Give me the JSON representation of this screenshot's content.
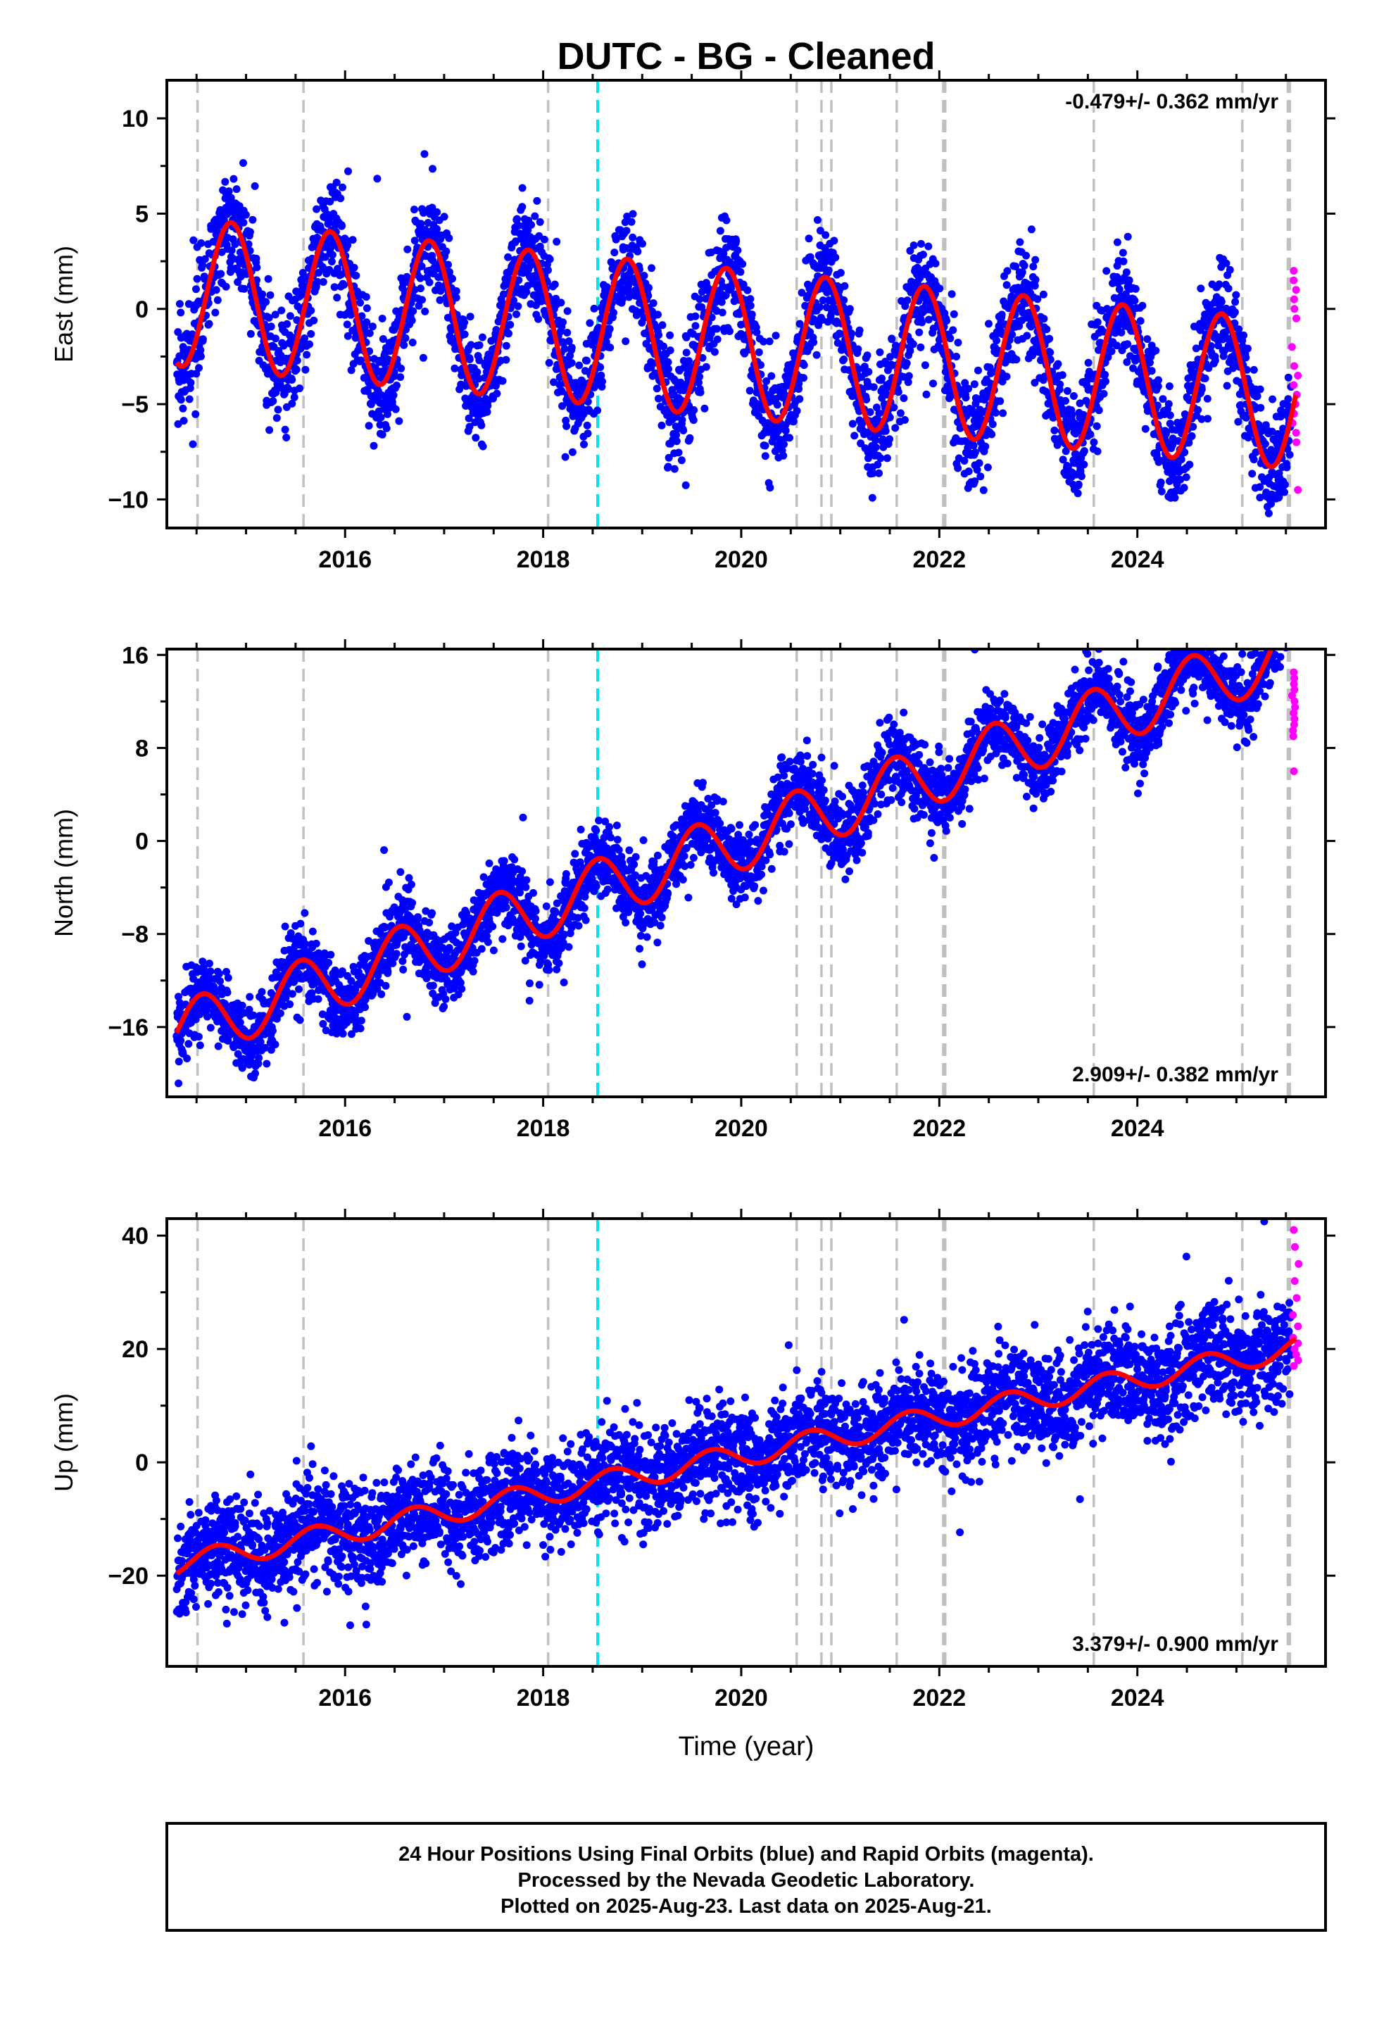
{
  "title": "DUTC  - BG - Cleaned",
  "xlabel": "Time (year)",
  "footer": [
    "24 Hour Positions Using Final Orbits (blue) and Rapid Orbits (magenta).",
    "Processed by the Nevada Geodetic Laboratory.",
    "Plotted on 2025-Aug-23. Last data on 2025-Aug-21."
  ],
  "colors": {
    "final": "#0000ff",
    "rapid": "#ff00ff",
    "model": "#ff0000",
    "event": "#c0c0c0",
    "antenna": "#00e5e5"
  },
  "chart_data": [
    {
      "type": "scatter",
      "ylabel": "East (mm)",
      "rate_label": "-0.479+/- 0.362 mm/yr",
      "xlim": [
        2014.2,
        2025.9
      ],
      "ylim": [
        -11.5,
        12.0
      ],
      "xticks": [
        2016,
        2018,
        2020,
        2022,
        2024
      ],
      "yticks": [
        -10,
        -5,
        0,
        5,
        10
      ],
      "event_lines": [
        2014.51,
        2015.58,
        2018.05,
        2020.56,
        2020.81,
        2020.91,
        2021.57,
        2022.04,
        2022.06,
        2023.56,
        2025.06,
        2025.52,
        2025.54
      ],
      "antenna_lines": [
        2018.55
      ],
      "series": [
        {
          "name": "Final Orbits",
          "role": "final",
          "x_range": [
            2014.3,
            2025.55
          ],
          "model": {
            "offset": 0.9,
            "trend": -0.479,
            "annual_amp": 3.9,
            "annual_peak": 2014.85,
            "t0": 2014.3
          },
          "scatter_sd": 1.4,
          "n_points": 3900
        },
        {
          "name": "Rapid Orbits",
          "role": "rapid",
          "x_range": [
            2025.56,
            2025.63
          ],
          "y_values": [
            2,
            1.5,
            1,
            0.5,
            0,
            -0.5,
            -2,
            -3,
            -3.5,
            -4,
            -4.5,
            -5,
            -5.5,
            -6,
            -6.5,
            -7,
            -9.5
          ]
        }
      ],
      "model_curve": {
        "x_range": [
          2014.3,
          2025.6
        ]
      }
    },
    {
      "type": "scatter",
      "ylabel": "North (mm)",
      "rate_label": "2.909+/- 0.382 mm/yr",
      "xlim": [
        2014.2,
        2025.9
      ],
      "ylim": [
        -22.0,
        16.5
      ],
      "xticks": [
        2016,
        2018,
        2020,
        2022,
        2024
      ],
      "yticks": [
        -16,
        -8,
        0,
        8,
        16
      ],
      "event_lines": [
        2014.51,
        2015.58,
        2018.05,
        2020.56,
        2020.81,
        2020.91,
        2021.57,
        2022.04,
        2022.06,
        2023.56,
        2025.06,
        2025.52,
        2025.54
      ],
      "antenna_lines": [
        2018.55
      ],
      "series": [
        {
          "name": "Final Orbits",
          "role": "final",
          "x_range": [
            2014.3,
            2025.55
          ],
          "model": {
            "offset": -16.5,
            "trend": 2.909,
            "annual_amp": 2.6,
            "annual_peak": 2014.55,
            "t0": 2014.3
          },
          "scatter_sd": 1.6,
          "n_points": 3900
        },
        {
          "name": "Rapid Orbits",
          "role": "rapid",
          "x_range": [
            2025.56,
            2025.63
          ],
          "y_values": [
            14.5,
            14,
            13.5,
            13,
            12.5,
            12,
            11.5,
            11,
            10.5,
            10,
            9.5,
            9,
            6
          ]
        }
      ],
      "model_curve": {
        "x_range": [
          2014.3,
          2025.6
        ]
      }
    },
    {
      "type": "scatter",
      "ylabel": "Up (mm)",
      "rate_label": "3.379+/- 0.900 mm/yr",
      "xlim": [
        2014.2,
        2025.9
      ],
      "ylim": [
        -36.0,
        43.0
      ],
      "xticks": [
        2016,
        2018,
        2020,
        2022,
        2024
      ],
      "yticks": [
        -20,
        0,
        20,
        40
      ],
      "event_lines": [
        2014.51,
        2015.58,
        2018.05,
        2020.56,
        2020.81,
        2020.91,
        2021.57,
        2022.04,
        2022.06,
        2023.56,
        2025.06,
        2025.52,
        2025.54
      ],
      "antenna_lines": [
        2018.55
      ],
      "series": [
        {
          "name": "Final Orbits",
          "role": "final",
          "x_range": [
            2014.3,
            2025.55
          ],
          "model": {
            "offset": -18.0,
            "trend": 3.379,
            "annual_amp": 2.0,
            "annual_peak": 2014.7,
            "t0": 2014.3
          },
          "scatter_sd": 4.5,
          "n_points": 3900
        },
        {
          "name": "Rapid Orbits",
          "role": "rapid",
          "x_range": [
            2025.56,
            2025.63
          ],
          "y_values": [
            41,
            38,
            35,
            32,
            29,
            26,
            24,
            22,
            21,
            20,
            19,
            18,
            17
          ]
        }
      ],
      "model_curve": {
        "x_range": [
          2014.3,
          2025.6
        ]
      }
    }
  ]
}
